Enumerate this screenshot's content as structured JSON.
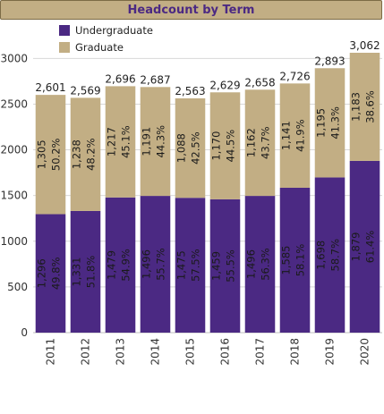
{
  "colors": {
    "undergraduate": "#4b2983",
    "graduate": "#c2ae84",
    "gridline": "#d8d8d8"
  },
  "chart_data": {
    "type": "bar",
    "stacked": true,
    "title": "Headcount by Term",
    "xlabel": "",
    "ylabel": "",
    "ylim": [
      0,
      3062
    ],
    "yticks": [
      0,
      500,
      1000,
      1500,
      2000,
      2500,
      3000
    ],
    "categories": [
      "2011",
      "2012",
      "2013",
      "2014",
      "2015",
      "2016",
      "2017",
      "2018",
      "2019",
      "2020"
    ],
    "totals": [
      2601,
      2569,
      2696,
      2687,
      2563,
      2629,
      2658,
      2726,
      2893,
      3062
    ],
    "series": [
      {
        "name": "Undergraduate",
        "values": [
          1296,
          1331,
          1479,
          1496,
          1475,
          1459,
          1496,
          1585,
          1698,
          1879
        ],
        "labels": [
          "1,296",
          "1,331",
          "1,479",
          "1,496",
          "1,475",
          "1,459",
          "1,496",
          "1,585",
          "1,698",
          "1,879"
        ],
        "percents": [
          "49.8%",
          "51.8%",
          "54.9%",
          "55.7%",
          "57.5%",
          "55.5%",
          "56.3%",
          "58.1%",
          "58.7%",
          "61.4%"
        ]
      },
      {
        "name": "Graduate",
        "values": [
          1305,
          1238,
          1217,
          1191,
          1088,
          1170,
          1162,
          1141,
          1195,
          1183
        ],
        "labels": [
          "1,305",
          "1,238",
          "1,217",
          "1,191",
          "1,088",
          "1,170",
          "1,162",
          "1,141",
          "1,195",
          "1,183"
        ],
        "percents": [
          "50.2%",
          "48.2%",
          "45.1%",
          "44.3%",
          "42.5%",
          "44.5%",
          "43.7%",
          "41.9%",
          "41.3%",
          "38.6%"
        ]
      }
    ],
    "total_labels": [
      "2,601",
      "2,569",
      "2,696",
      "2,687",
      "2,563",
      "2,629",
      "2,658",
      "2,726",
      "2,893",
      "3,062"
    ],
    "legend": "top-left",
    "grid": true
  }
}
